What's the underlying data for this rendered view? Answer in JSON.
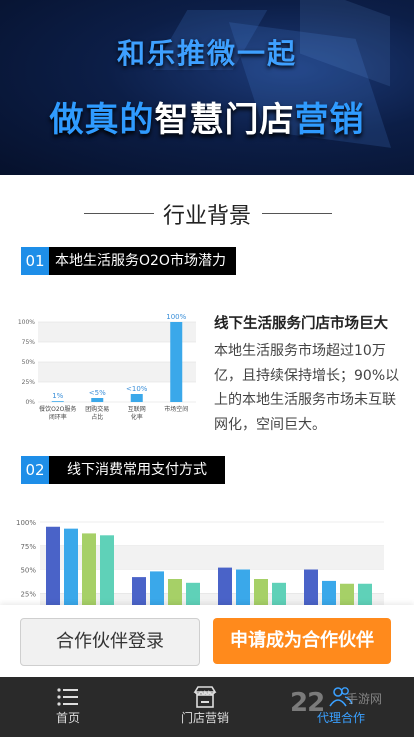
{
  "hero": {
    "line1": "和乐推微一起",
    "line2_part1": "做真的",
    "line2_part2": "智慧门店",
    "line2_part3": "营销"
  },
  "section_title": "行业背景",
  "badge1": {
    "num": "01",
    "label": "本地生活服务O2O市场潜力"
  },
  "badge2": {
    "num": "02",
    "label": "线下消费常用支付方式"
  },
  "chart_data": [
    {
      "type": "bar",
      "categories": [
        "餐饮O2O服务\n闭环率",
        "团购交易\n占比",
        "互联网\n化率",
        "市场空间"
      ],
      "values": [
        1,
        5,
        10,
        100
      ],
      "data_labels": [
        "1%",
        "<5%",
        "<10%",
        "100%"
      ],
      "yticks": [
        "0%",
        "25%",
        "50%",
        "75%",
        "100%"
      ],
      "ylim": [
        0,
        100
      ],
      "colors": [
        "#3aa8ea"
      ]
    },
    {
      "type": "bar",
      "categories": [
        "",
        "",
        "",
        ""
      ],
      "series": [
        {
          "values": [
            95,
            93,
            88,
            86
          ],
          "color": "#4a63c8"
        },
        {
          "values": [
            42,
            48,
            40,
            36
          ],
          "color": "#3aa8ea"
        },
        {
          "values": [
            52,
            50,
            40,
            36
          ],
          "color": "#a6d067"
        },
        {
          "values": [
            50,
            38,
            35,
            35
          ],
          "color": "#5fd1b8"
        }
      ],
      "yticks": [
        "25%",
        "50%",
        "75%",
        "100%"
      ],
      "ylim": [
        0,
        100
      ]
    }
  ],
  "desc": {
    "heading": "线下生活服务门店市场巨大",
    "body": "本地生活服务市场超过10万亿，且持续保持增长；90%以上的本地生活服务市场未互联网化，空间巨大。"
  },
  "buttons": {
    "login": "合作伙伴登录",
    "apply": "申请成为合作伙伴"
  },
  "tabs": [
    {
      "label": "首页",
      "icon": "menu-icon"
    },
    {
      "label": "门店营销",
      "icon": "store-icon"
    },
    {
      "label": "代理合作",
      "icon": "partners-icon"
    }
  ],
  "watermark": {
    "main": "22",
    "sub": "手游网"
  },
  "colors": {
    "accent": "#1e8ee8",
    "orange": "#ff8a1c",
    "tabbar": "#2a2a2a"
  }
}
